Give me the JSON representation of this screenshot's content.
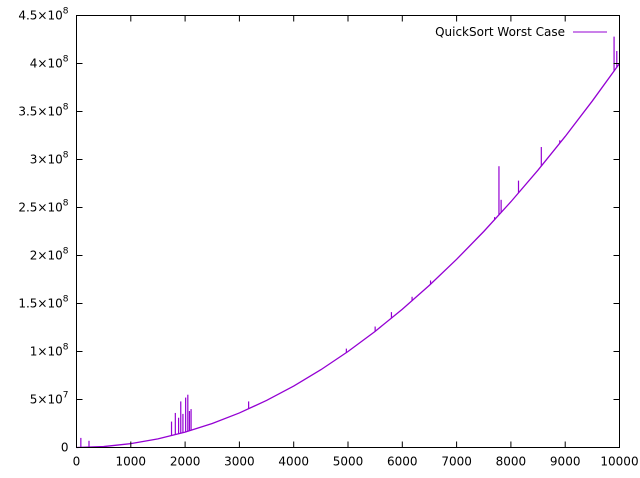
{
  "chart_data": {
    "type": "line",
    "title": "",
    "xlabel": "",
    "ylabel": "",
    "xlim": [
      0,
      10000
    ],
    "ylim": [
      0,
      450000000
    ],
    "grid": false,
    "legend": {
      "placement": "top-right",
      "entries": [
        "QuickSort Worst Case"
      ]
    },
    "x_ticks": [
      {
        "value": 0,
        "label": "0"
      },
      {
        "value": 1000,
        "label": "1000"
      },
      {
        "value": 2000,
        "label": "2000"
      },
      {
        "value": 3000,
        "label": "3000"
      },
      {
        "value": 4000,
        "label": "4000"
      },
      {
        "value": 5000,
        "label": "5000"
      },
      {
        "value": 6000,
        "label": "6000"
      },
      {
        "value": 7000,
        "label": "7000"
      },
      {
        "value": 8000,
        "label": "8000"
      },
      {
        "value": 9000,
        "label": "9000"
      },
      {
        "value": 10000,
        "label": "10000"
      }
    ],
    "y_ticks": [
      {
        "value": 0,
        "mant": "0",
        "exp": ""
      },
      {
        "value": 50000000,
        "mant": "5×10",
        "exp": "7"
      },
      {
        "value": 100000000,
        "mant": "1×10",
        "exp": "8"
      },
      {
        "value": 150000000,
        "mant": "1.5×10",
        "exp": "8"
      },
      {
        "value": 200000000,
        "mant": "2×10",
        "exp": "8"
      },
      {
        "value": 250000000,
        "mant": "2.5×10",
        "exp": "8"
      },
      {
        "value": 300000000,
        "mant": "3×10",
        "exp": "8"
      },
      {
        "value": 350000000,
        "mant": "3.5×10",
        "exp": "8"
      },
      {
        "value": 400000000,
        "mant": "4×10",
        "exp": "8"
      },
      {
        "value": 450000000,
        "mant": "4.5×10",
        "exp": "8"
      }
    ],
    "series": [
      {
        "name": "QuickSort Worst Case",
        "color": "#9400d3",
        "x": [
          0,
          500,
          1000,
          1500,
          2000,
          2500,
          3000,
          3500,
          4000,
          4500,
          5000,
          5500,
          6000,
          6500,
          7000,
          7500,
          8000,
          8500,
          9000,
          9500,
          10000
        ],
        "y": [
          0,
          1000000,
          4000000,
          9000000,
          16000000,
          25000000,
          36000000,
          49000000,
          64000000,
          81000000,
          100000000,
          121000000,
          144000000,
          169000000,
          196000000,
          225000000,
          256000000,
          289000000,
          324000000,
          361000000,
          400000000
        ],
        "spikes": [
          {
            "x": 80,
            "y": 10000000
          },
          {
            "x": 230,
            "y": 7000000
          },
          {
            "x": 1750,
            "y": 27000000
          },
          {
            "x": 1820,
            "y": 36000000
          },
          {
            "x": 1880,
            "y": 31000000
          },
          {
            "x": 1920,
            "y": 48000000
          },
          {
            "x": 1960,
            "y": 35000000
          },
          {
            "x": 2010,
            "y": 52000000
          },
          {
            "x": 2050,
            "y": 55000000
          },
          {
            "x": 2080,
            "y": 38000000
          },
          {
            "x": 2110,
            "y": 40000000
          },
          {
            "x": 3170,
            "y": 48000000
          },
          {
            "x": 4970,
            "y": 103000000
          },
          {
            "x": 5500,
            "y": 126000000
          },
          {
            "x": 5800,
            "y": 141000000
          },
          {
            "x": 6180,
            "y": 157000000
          },
          {
            "x": 6520,
            "y": 174000000
          },
          {
            "x": 7700,
            "y": 240000000
          },
          {
            "x": 7780,
            "y": 293000000
          },
          {
            "x": 7820,
            "y": 258000000
          },
          {
            "x": 8140,
            "y": 278000000
          },
          {
            "x": 8560,
            "y": 313000000
          },
          {
            "x": 8900,
            "y": 320000000
          },
          {
            "x": 9900,
            "y": 428000000
          },
          {
            "x": 9950,
            "y": 413000000
          }
        ]
      }
    ]
  }
}
